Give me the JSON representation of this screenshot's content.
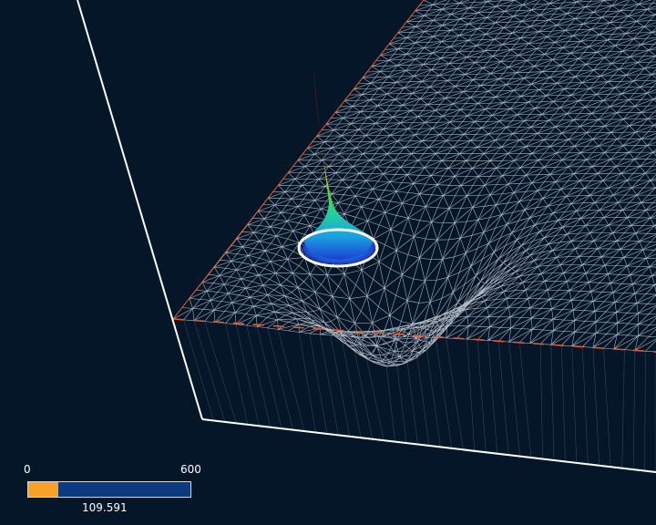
{
  "viewer": {
    "background_color": "#061629",
    "mesh_color": "#d6dbe2",
    "outline_color": "#ffffff",
    "accent_line_color": "#e8572a"
  },
  "progress": {
    "min_label": "0",
    "max_label": "600",
    "min": 0,
    "max": 600,
    "value": 109.591,
    "value_label": "109.591",
    "fill_color": "#f7a128",
    "track_color": "#0b3a80"
  }
}
